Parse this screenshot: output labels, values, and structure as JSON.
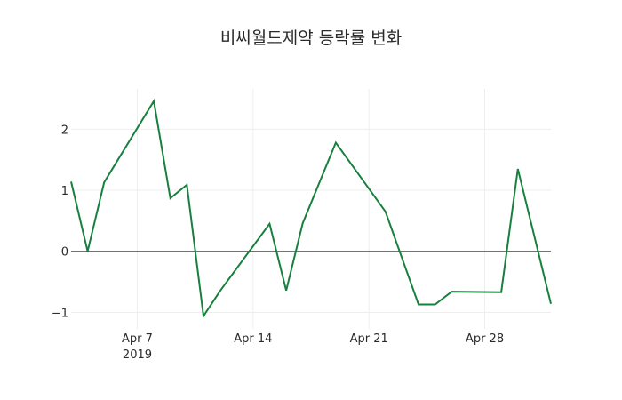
{
  "title": "비씨월드제약 등락률 변화",
  "colors": {
    "line": "#17803f",
    "grid": "#eeeeee",
    "zero_line": "#444444",
    "background": "#ffffff"
  },
  "chart_data": {
    "type": "line",
    "title": "비씨월드제약 등락률 변화",
    "xlabel": "",
    "ylabel": "",
    "x": [
      "2019-04-03",
      "2019-04-04",
      "2019-04-05",
      "2019-04-08",
      "2019-04-09",
      "2019-04-10",
      "2019-04-11",
      "2019-04-12",
      "2019-04-15",
      "2019-04-16",
      "2019-04-17",
      "2019-04-18",
      "2019-04-19",
      "2019-04-22",
      "2019-04-23",
      "2019-04-24",
      "2019-04-25",
      "2019-04-26",
      "2019-04-29",
      "2019-04-30",
      "2019-05-02"
    ],
    "series": [
      {
        "name": "등락률",
        "values": [
          1.14,
          0.0,
          1.13,
          2.46,
          0.87,
          1.09,
          -1.06,
          -0.65,
          0.45,
          -0.64,
          0.46,
          1.12,
          1.78,
          0.65,
          -0.11,
          -0.87,
          -0.87,
          -0.66,
          -0.67,
          1.35,
          -0.86
        ]
      }
    ],
    "x_ticks": [
      {
        "date": "2019-04-07",
        "label": "Apr 7",
        "sublabel": "2019"
      },
      {
        "date": "2019-04-14",
        "label": "Apr 14",
        "sublabel": ""
      },
      {
        "date": "2019-04-21",
        "label": "Apr 21",
        "sublabel": ""
      },
      {
        "date": "2019-04-28",
        "label": "Apr 28",
        "sublabel": ""
      }
    ],
    "y_ticks": [
      {
        "value": 2,
        "label": "2"
      },
      {
        "value": 1,
        "label": "1"
      },
      {
        "value": 0,
        "label": "0"
      },
      {
        "value": -1,
        "label": "−1"
      }
    ],
    "xlim": [
      "2019-04-03",
      "2019-05-02"
    ],
    "ylim": [
      -1.27,
      2.66
    ],
    "grid": true,
    "legend": false
  }
}
